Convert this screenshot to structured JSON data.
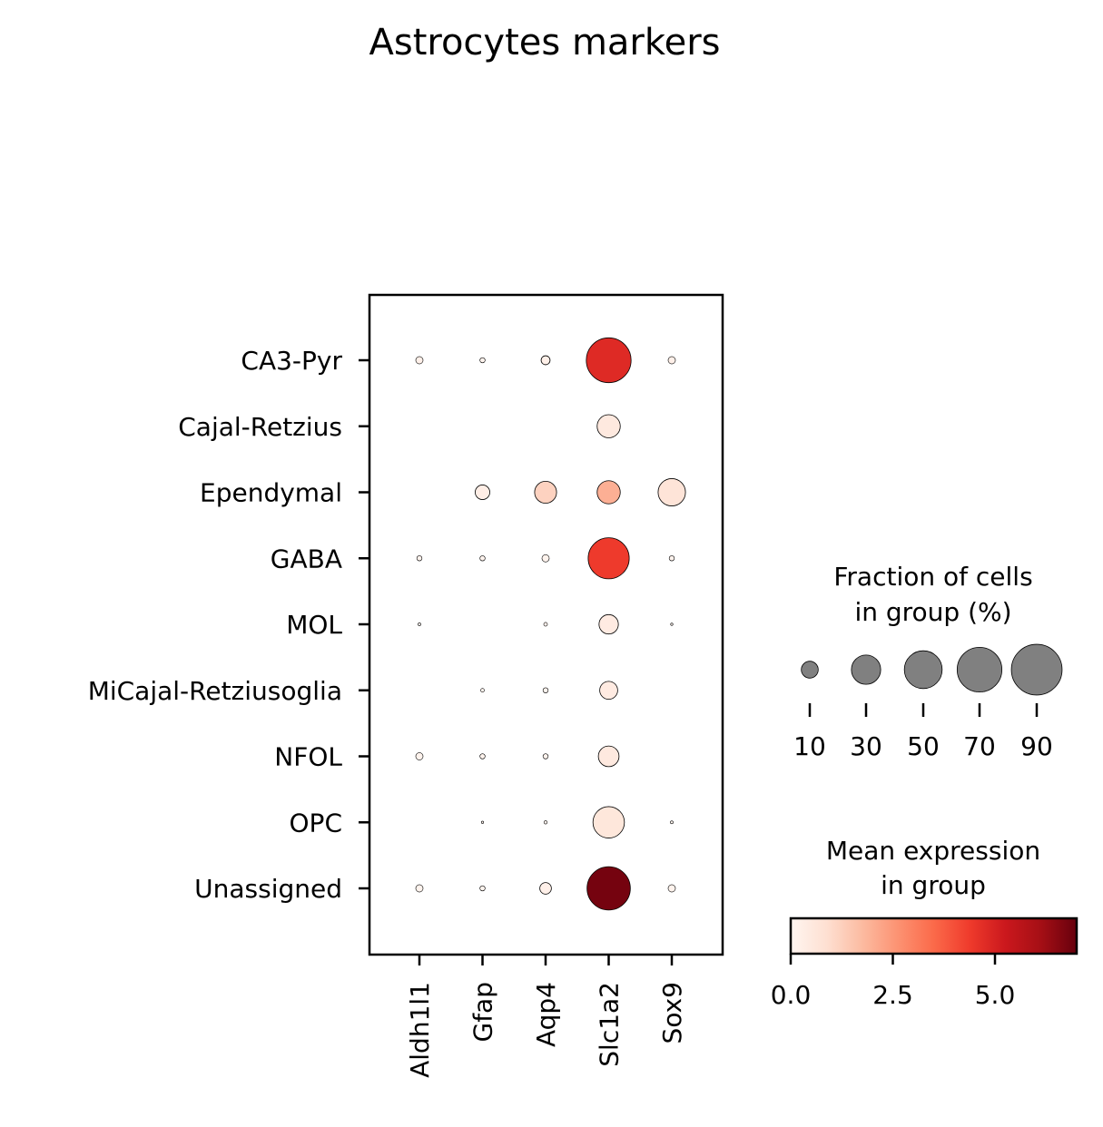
{
  "chart_data": {
    "type": "dotplot",
    "title": "Astrocytes markers",
    "genes": [
      "Aldh1l1",
      "Gfap",
      "Aqp4",
      "Slc1a2",
      "Sox9"
    ],
    "groups": [
      "CA3-Pyr",
      "Cajal-Retzius",
      "Ependymal",
      "GABA",
      "MOL",
      "MiCajal-Retziusoglia",
      "NFOL",
      "OPC",
      "Unassigned"
    ],
    "fraction_pct": [
      [
        2,
        1,
        3,
        75,
        2
      ],
      [
        0,
        0,
        0,
        20,
        0
      ],
      [
        0,
        8,
        18,
        20,
        28
      ],
      [
        1,
        1,
        2,
        63,
        1
      ],
      [
        0.3,
        0,
        0.5,
        14,
        0.2
      ],
      [
        0,
        0.5,
        1,
        12,
        0
      ],
      [
        2,
        1,
        1,
        16,
        0
      ],
      [
        0,
        0.2,
        0.4,
        37,
        0.3
      ],
      [
        2,
        1,
        5,
        70,
        2
      ]
    ],
    "mean_expression": [
      [
        0.2,
        0.1,
        0.2,
        4.8,
        0.2
      ],
      [
        0,
        0,
        0,
        0.5,
        0
      ],
      [
        0,
        0.3,
        1.2,
        2.0,
        0.7
      ],
      [
        0.1,
        0.1,
        0.1,
        4.4,
        0.1
      ],
      [
        0.1,
        0,
        0.1,
        0.4,
        0.1
      ],
      [
        0,
        0.1,
        0.1,
        0.4,
        0
      ],
      [
        0.1,
        0.1,
        0.1,
        0.5,
        0
      ],
      [
        0,
        0.1,
        0.1,
        0.6,
        0.1
      ],
      [
        0.1,
        0.1,
        0.2,
        6.8,
        0.1
      ]
    ],
    "size_legend": {
      "title_line1": "Fraction of cells",
      "title_line2": "in group (%)",
      "values": [
        10,
        30,
        50,
        70,
        90
      ],
      "labels": [
        "10",
        "30",
        "50",
        "70",
        "90"
      ]
    },
    "color_legend": {
      "title_line1": "Mean expression",
      "title_line2": "in group",
      "range": [
        0,
        7
      ],
      "ticks": [
        0,
        2.5,
        5.0
      ],
      "tick_labels": [
        "0.0",
        "2.5",
        "5.0"
      ]
    },
    "colormap": "Reds",
    "colormap_stops": [
      "#fff5f0",
      "#fee0d2",
      "#fcbba1",
      "#fc9272",
      "#fb6a4a",
      "#ef3b2c",
      "#cb181d",
      "#a50f15",
      "#67000d"
    ],
    "size_legend_color": "#808080"
  }
}
